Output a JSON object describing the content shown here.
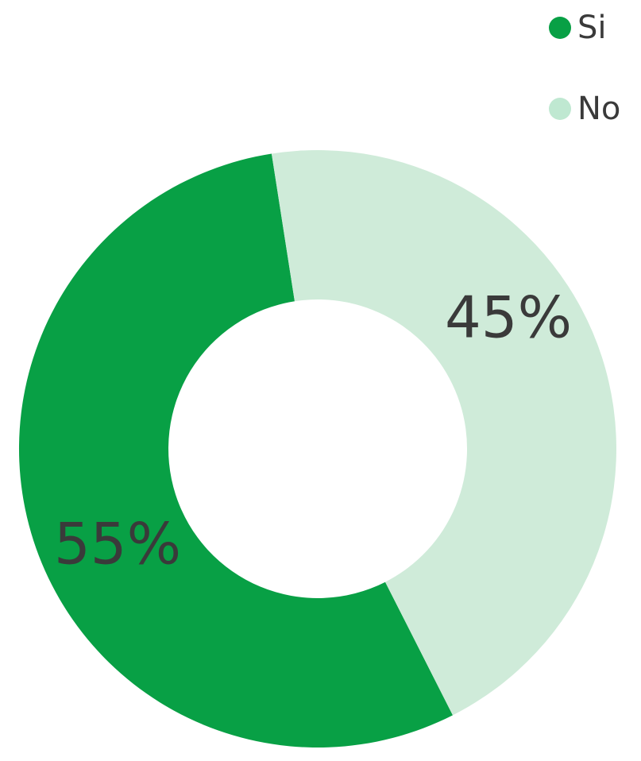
{
  "chart_data": {
    "type": "pie",
    "style": "donut",
    "title": "",
    "categories": [
      "Si",
      "No"
    ],
    "values": [
      55,
      45
    ],
    "value_labels": [
      "55%",
      "45%"
    ],
    "colors": [
      "#08A045",
      "#CFEBD9"
    ],
    "legend_position": "top-right",
    "grid": false
  },
  "legend": {
    "items": [
      {
        "label": "Si",
        "color": "#08A045"
      },
      {
        "label": "No",
        "color": "#BFE8D1"
      }
    ]
  },
  "text_color": "#3a3a3a"
}
